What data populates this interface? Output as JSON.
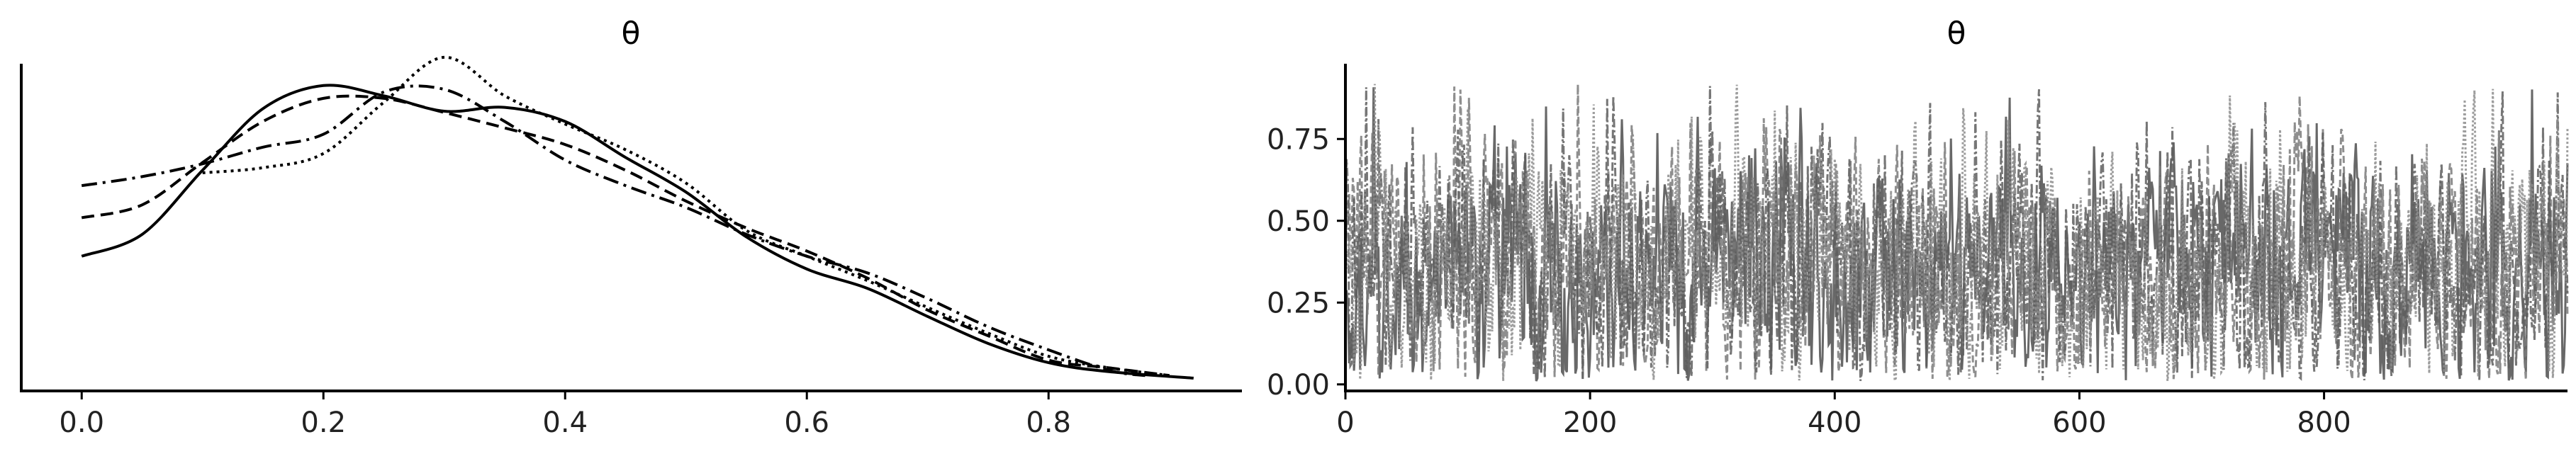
{
  "chart_data": [
    {
      "type": "line",
      "kind": "density",
      "title": "θ",
      "xlabel": "",
      "ylabel": "",
      "xlim": [
        -0.05,
        0.96
      ],
      "ylim": [
        0,
        2.55
      ],
      "x_ticks": [
        "0.0",
        "0.2",
        "0.4",
        "0.6",
        "0.8"
      ],
      "x_tick_values": [
        0.0,
        0.2,
        0.4,
        0.6,
        0.8
      ],
      "y_ticks_visible": false,
      "grid": false,
      "color": "#000000",
      "series": [
        {
          "linestyle": "solid",
          "x": [
            0.0,
            0.05,
            0.1,
            0.15,
            0.2,
            0.25,
            0.3,
            0.35,
            0.4,
            0.45,
            0.5,
            0.55,
            0.6,
            0.65,
            0.7,
            0.75,
            0.8,
            0.85,
            0.92
          ],
          "y": [
            1.05,
            1.22,
            1.72,
            2.2,
            2.38,
            2.3,
            2.18,
            2.21,
            2.1,
            1.82,
            1.55,
            1.2,
            0.95,
            0.8,
            0.58,
            0.37,
            0.22,
            0.15,
            0.1
          ]
        },
        {
          "linestyle": "dashed",
          "x": [
            0.0,
            0.05,
            0.1,
            0.15,
            0.2,
            0.25,
            0.3,
            0.35,
            0.4,
            0.45,
            0.5,
            0.55,
            0.6,
            0.65,
            0.7,
            0.75,
            0.8,
            0.85,
            0.9
          ],
          "y": [
            1.35,
            1.45,
            1.78,
            2.1,
            2.28,
            2.28,
            2.17,
            2.05,
            1.92,
            1.72,
            1.48,
            1.27,
            1.09,
            0.88,
            0.63,
            0.43,
            0.24,
            0.18,
            0.12
          ]
        },
        {
          "linestyle": "dashdot",
          "x": [
            0.0,
            0.05,
            0.1,
            0.15,
            0.2,
            0.25,
            0.3,
            0.35,
            0.4,
            0.45,
            0.5,
            0.55,
            0.6,
            0.65,
            0.7,
            0.75,
            0.8,
            0.85,
            0.88
          ],
          "y": [
            1.6,
            1.67,
            1.77,
            1.9,
            2.0,
            2.33,
            2.35,
            2.1,
            1.8,
            1.6,
            1.43,
            1.22,
            1.05,
            0.92,
            0.72,
            0.5,
            0.32,
            0.16,
            0.12
          ]
        },
        {
          "linestyle": "dotted",
          "x": [
            0.1,
            0.15,
            0.2,
            0.25,
            0.3,
            0.35,
            0.4,
            0.45,
            0.5,
            0.55,
            0.6,
            0.65,
            0.7,
            0.75,
            0.8,
            0.85,
            0.9
          ],
          "y": [
            1.7,
            1.74,
            1.85,
            2.25,
            2.6,
            2.3,
            2.08,
            1.88,
            1.62,
            1.25,
            1.05,
            0.86,
            0.65,
            0.45,
            0.27,
            0.18,
            0.12
          ]
        }
      ]
    },
    {
      "type": "line",
      "kind": "trace",
      "title": "θ",
      "xlabel": "",
      "ylabel": "",
      "xlim": [
        0,
        999
      ],
      "ylim": [
        -0.02,
        0.98
      ],
      "x_ticks": [
        "0",
        "200",
        "400",
        "600",
        "800"
      ],
      "x_tick_values": [
        0,
        200,
        400,
        600,
        800
      ],
      "y_ticks": [
        "0.00",
        "0.25",
        "0.50",
        "0.75"
      ],
      "y_tick_values": [
        0.0,
        0.25,
        0.5,
        0.75
      ],
      "grid": false,
      "n_draws": 1000,
      "value_range": [
        0.0,
        0.93
      ],
      "typical_center": 0.35,
      "colors": [
        "#4d4d4d",
        "#7a7a7a",
        "#5e5e5e",
        "#8c8c8c"
      ],
      "series": [
        {
          "linestyle": "solid"
        },
        {
          "linestyle": "dashed"
        },
        {
          "linestyle": "dashdot"
        },
        {
          "linestyle": "dotted"
        }
      ]
    }
  ]
}
